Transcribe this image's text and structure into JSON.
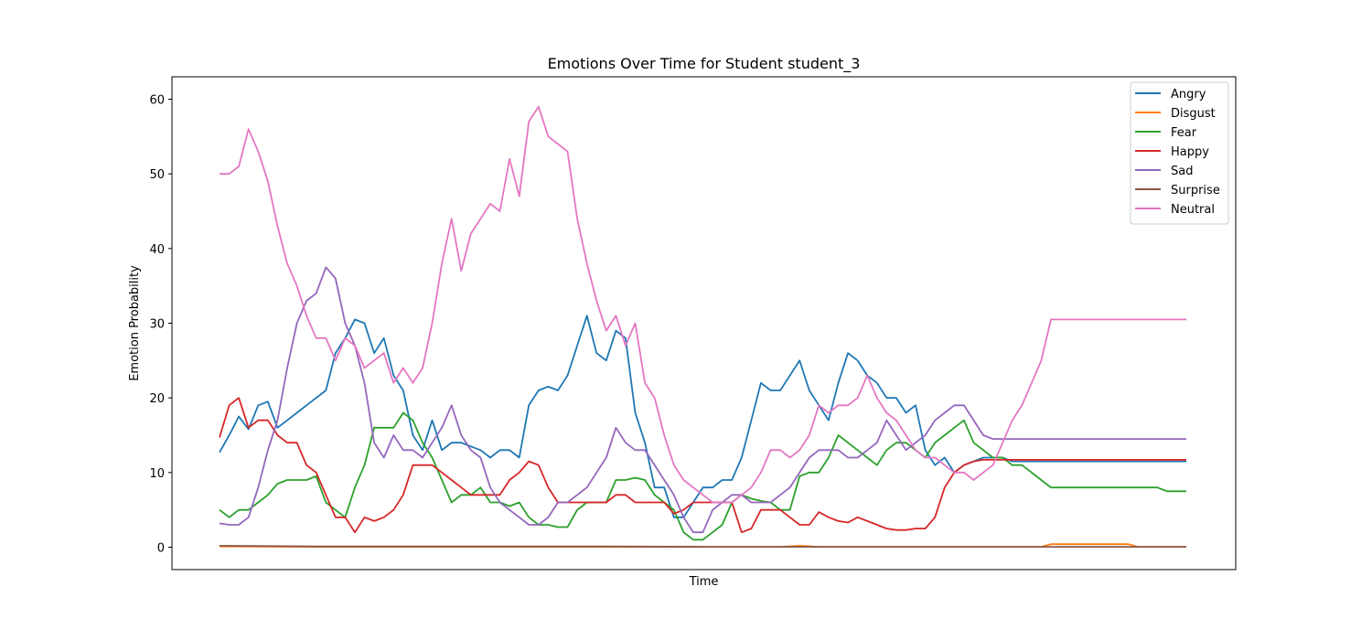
{
  "chart_data": {
    "type": "line",
    "title": "Emotions Over Time for Student student_3",
    "xlabel": "Time",
    "ylabel": "Emotion Probability",
    "xlim": [
      0,
      100
    ],
    "ylim": [
      -3,
      63
    ],
    "yticks": [
      0,
      10,
      20,
      30,
      40,
      50,
      60
    ],
    "xticks": [],
    "legend_position": "top-right",
    "grid": false,
    "series": [
      {
        "name": "Angry",
        "color": "#1f77b4",
        "x": [
          0,
          1,
          2,
          3,
          4,
          5,
          6,
          7,
          8,
          9,
          10,
          11,
          12,
          13,
          14,
          15,
          16,
          17,
          18,
          19,
          20,
          21,
          22,
          23,
          24,
          25,
          26,
          27,
          28,
          29,
          30,
          31,
          32,
          33,
          34,
          35,
          36,
          37,
          38,
          39,
          40,
          41,
          42,
          43,
          44,
          45,
          46,
          47,
          48,
          49,
          50,
          51,
          52,
          53,
          54,
          55,
          56,
          57,
          58,
          59,
          60,
          61,
          62,
          63,
          64,
          65,
          66,
          67,
          68,
          69,
          70,
          71,
          72,
          73,
          74,
          75,
          76,
          77,
          78,
          79,
          80,
          81,
          82,
          83,
          84,
          85,
          86,
          87,
          88,
          89,
          90,
          91,
          92,
          93,
          94,
          95,
          96,
          97,
          98,
          99,
          100
        ],
        "y": [
          12.7,
          15,
          17.5,
          15.8,
          19,
          19.5,
          16,
          17,
          18,
          19,
          20,
          21,
          26,
          28,
          30.5,
          30,
          26,
          28,
          23,
          21,
          15,
          13,
          17,
          13,
          14,
          14,
          13.5,
          13,
          12,
          13,
          13,
          12,
          19,
          21,
          21.5,
          21,
          23,
          27,
          31,
          26,
          25,
          29,
          28,
          18,
          14,
          8,
          8,
          4,
          4,
          6,
          8,
          8,
          9,
          9,
          12,
          17,
          22,
          21,
          21,
          23,
          25,
          21,
          19,
          17,
          22,
          26,
          25,
          23,
          22,
          20,
          20,
          18,
          19,
          13,
          11,
          12,
          10,
          11,
          11.5,
          12,
          12,
          12,
          11.5,
          11.5,
          11.5,
          11.5,
          11.5,
          11.5,
          11.5,
          11.5,
          11.5,
          11.5,
          11.5,
          11.5,
          11.5,
          11.5,
          11.5,
          11.5,
          11.5,
          11.5,
          11.5
        ]
      },
      {
        "name": "Disgust",
        "color": "#ff7f0e",
        "x": [
          0,
          10,
          20,
          30,
          40,
          50,
          58,
          60,
          62,
          70,
          80,
          85,
          86,
          94,
          95,
          100
        ],
        "y": [
          0.1,
          0.05,
          0.05,
          0.05,
          0.05,
          0.05,
          0.05,
          0.2,
          0.05,
          0.05,
          0.05,
          0.05,
          0.4,
          0.4,
          0.05,
          0.05
        ]
      },
      {
        "name": "Fear",
        "color": "#2ca02c",
        "x": [
          0,
          1,
          2,
          3,
          4,
          5,
          6,
          7,
          8,
          9,
          10,
          11,
          12,
          13,
          14,
          15,
          16,
          17,
          18,
          19,
          20,
          21,
          22,
          23,
          24,
          25,
          26,
          27,
          28,
          29,
          30,
          31,
          32,
          33,
          34,
          35,
          36,
          37,
          38,
          39,
          40,
          41,
          42,
          43,
          44,
          45,
          46,
          47,
          48,
          49,
          50,
          51,
          52,
          53,
          54,
          55,
          56,
          57,
          58,
          59,
          60,
          61,
          62,
          63,
          64,
          65,
          66,
          67,
          68,
          69,
          70,
          71,
          72,
          73,
          74,
          75,
          76,
          77,
          78,
          79,
          80,
          81,
          82,
          83,
          84,
          85,
          86,
          87,
          88,
          89,
          90,
          91,
          92,
          93,
          94,
          95,
          96,
          97,
          98,
          99,
          100
        ],
        "y": [
          5,
          4,
          5,
          5,
          6,
          7,
          8.5,
          9,
          9,
          9,
          9.5,
          6,
          5,
          4,
          8,
          11,
          16,
          16,
          16,
          18,
          17,
          14,
          12,
          9,
          6,
          7,
          7,
          8,
          6,
          6,
          5.5,
          6,
          4,
          3,
          3,
          2.7,
          2.7,
          5,
          6,
          6,
          6,
          9,
          9,
          9.3,
          9,
          7,
          6,
          5,
          2,
          1,
          1,
          2,
          3,
          6,
          7,
          6.5,
          6.2,
          6,
          5,
          5,
          9.5,
          10,
          10,
          12,
          15,
          14,
          13,
          12,
          11,
          13,
          14,
          14,
          13,
          12,
          14,
          15,
          16,
          17,
          14,
          13,
          12,
          12,
          11,
          11,
          10,
          9,
          8,
          8,
          8,
          8,
          8,
          8,
          8,
          8,
          8,
          8,
          8,
          8,
          7.5,
          7.5,
          7.5
        ]
      },
      {
        "name": "Happy",
        "color": "#d62728",
        "x": [
          0,
          1,
          2,
          3,
          4,
          5,
          6,
          7,
          8,
          9,
          10,
          11,
          12,
          13,
          14,
          15,
          16,
          17,
          18,
          19,
          20,
          21,
          22,
          23,
          24,
          25,
          26,
          27,
          28,
          29,
          30,
          31,
          32,
          33,
          34,
          35,
          36,
          37,
          38,
          39,
          40,
          41,
          42,
          43,
          44,
          45,
          46,
          47,
          48,
          49,
          50,
          51,
          52,
          53,
          54,
          55,
          56,
          57,
          58,
          59,
          60,
          61,
          62,
          63,
          64,
          65,
          66,
          67,
          68,
          69,
          70,
          71,
          72,
          73,
          74,
          75,
          76,
          77,
          78,
          79,
          80,
          81,
          82,
          83,
          84,
          85,
          86,
          87,
          88,
          89,
          90,
          91,
          92,
          93,
          94,
          95,
          96,
          97,
          98,
          99,
          100
        ],
        "y": [
          14.7,
          19,
          20,
          16,
          17,
          17,
          15,
          14,
          14,
          11,
          10,
          7,
          4,
          4,
          2,
          4,
          3.5,
          4,
          5,
          7,
          11,
          11,
          11,
          10,
          9,
          8,
          7,
          7,
          7,
          7,
          9,
          10,
          11.5,
          11,
          8,
          6,
          6,
          6,
          6,
          6,
          6,
          7,
          7,
          6,
          6,
          6,
          6,
          4.5,
          5,
          6,
          6,
          6,
          6,
          6,
          2,
          2.5,
          5,
          5,
          5,
          4,
          3,
          3,
          4.7,
          4,
          3.5,
          3.3,
          4,
          3.5,
          3,
          2.5,
          2.3,
          2.3,
          2.5,
          2.5,
          4,
          8,
          10,
          11,
          11.5,
          11.7,
          11.7,
          11.7,
          11.7,
          11.7,
          11.7,
          11.7,
          11.7,
          11.7,
          11.7,
          11.7,
          11.7,
          11.7,
          11.7,
          11.7,
          11.7,
          11.7,
          11.7,
          11.7,
          11.7,
          11.7,
          11.7
        ]
      },
      {
        "name": "Sad",
        "color": "#9467bd",
        "x": [
          0,
          1,
          2,
          3,
          4,
          5,
          6,
          7,
          8,
          9,
          10,
          11,
          12,
          13,
          14,
          15,
          16,
          17,
          18,
          19,
          20,
          21,
          22,
          23,
          24,
          25,
          26,
          27,
          28,
          29,
          30,
          31,
          32,
          33,
          34,
          35,
          36,
          37,
          38,
          39,
          40,
          41,
          42,
          43,
          44,
          45,
          46,
          47,
          48,
          49,
          50,
          51,
          52,
          53,
          54,
          55,
          56,
          57,
          58,
          59,
          60,
          61,
          62,
          63,
          64,
          65,
          66,
          67,
          68,
          69,
          70,
          71,
          72,
          73,
          74,
          75,
          76,
          77,
          78,
          79,
          80,
          81,
          82,
          83,
          84,
          85,
          86,
          87,
          88,
          89,
          90,
          91,
          92,
          93,
          94,
          95,
          96,
          97,
          98,
          99,
          100
        ],
        "y": [
          3.2,
          3,
          3,
          4,
          8,
          13,
          17,
          24,
          30,
          33,
          34,
          37.5,
          36,
          30,
          27,
          22,
          14,
          12,
          15,
          13,
          13,
          12,
          14,
          16,
          19,
          15,
          13,
          12,
          8,
          6,
          5,
          4,
          3,
          3,
          4,
          6,
          6,
          7,
          8,
          10,
          12,
          16,
          14,
          13,
          13,
          11,
          9,
          7,
          4,
          2,
          2,
          5,
          6,
          7,
          7,
          6,
          6,
          6,
          7,
          8,
          10,
          12,
          13,
          13,
          13,
          12,
          12,
          13,
          14,
          17,
          15,
          13,
          14,
          15,
          17,
          18,
          19,
          19,
          17,
          15,
          14.5,
          14.5,
          14.5,
          14.5,
          14.5,
          14.5,
          14.5,
          14.5,
          14.5,
          14.5,
          14.5,
          14.5,
          14.5,
          14.5,
          14.5,
          14.5,
          14.5,
          14.5,
          14.5,
          14.5,
          14.5
        ]
      },
      {
        "name": "Surprise",
        "color": "#8c564b",
        "x": [
          0,
          10,
          20,
          30,
          40,
          50,
          60,
          70,
          80,
          90,
          100
        ],
        "y": [
          0.2,
          0.1,
          0.1,
          0.1,
          0.1,
          0.05,
          0.05,
          0.05,
          0.05,
          0.05,
          0.05
        ]
      },
      {
        "name": "Neutral",
        "color": "#e377c2",
        "x": [
          0,
          1,
          2,
          3,
          4,
          5,
          6,
          7,
          8,
          9,
          10,
          11,
          12,
          13,
          14,
          15,
          16,
          17,
          18,
          19,
          20,
          21,
          22,
          23,
          24,
          25,
          26,
          27,
          28,
          29,
          30,
          31,
          32,
          33,
          34,
          35,
          36,
          37,
          38,
          39,
          40,
          41,
          42,
          43,
          44,
          45,
          46,
          47,
          48,
          49,
          50,
          51,
          52,
          53,
          54,
          55,
          56,
          57,
          58,
          59,
          60,
          61,
          62,
          63,
          64,
          65,
          66,
          67,
          68,
          69,
          70,
          71,
          72,
          73,
          74,
          75,
          76,
          77,
          78,
          79,
          80,
          81,
          82,
          83,
          84,
          85,
          86,
          87,
          88,
          89,
          90,
          91,
          92,
          93,
          94,
          95,
          96,
          97,
          98,
          99,
          100
        ],
        "y": [
          50,
          50,
          51,
          56,
          53,
          49,
          43,
          38,
          35,
          31,
          28,
          28,
          25,
          28,
          27,
          24,
          25,
          26,
          22,
          24,
          22,
          24,
          30,
          38,
          44,
          37,
          42,
          44,
          46,
          45,
          52,
          47,
          57,
          59,
          55,
          54,
          53,
          44,
          38,
          33,
          29,
          31,
          27,
          30,
          22,
          20,
          15,
          11,
          9,
          8,
          7,
          6,
          6,
          6,
          7,
          8,
          10,
          13,
          13,
          12,
          13,
          15,
          19,
          18,
          19,
          19,
          20,
          23,
          20,
          18,
          17,
          15,
          13,
          12,
          12,
          11,
          10,
          10,
          9,
          10,
          11,
          14,
          17,
          19,
          22,
          25,
          30.5,
          30.5,
          30.5,
          30.5,
          30.5,
          30.5,
          30.5,
          30.5,
          30.5,
          30.5,
          30.5,
          30.5,
          30.5,
          30.5,
          30.5
        ]
      }
    ]
  }
}
